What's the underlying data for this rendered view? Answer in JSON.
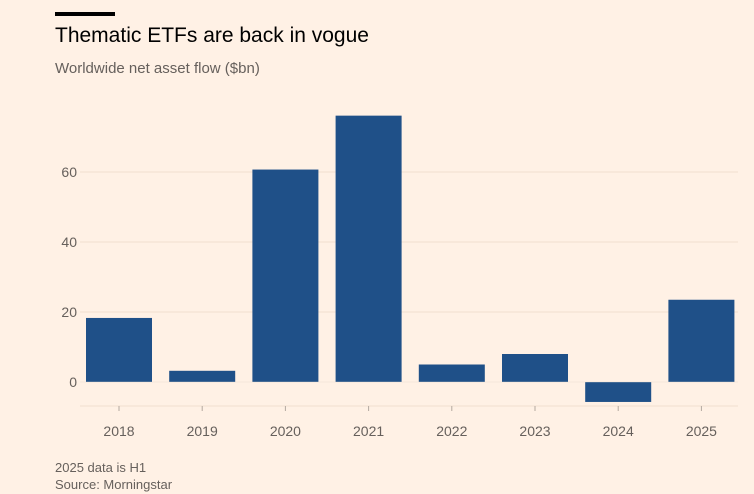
{
  "title": "Thematic ETFs are back in vogue",
  "subtitle": "Worldwide net asset flow ($bn)",
  "note": "2025 data is H1",
  "source": "Source: Morningstar",
  "colors": {
    "background": "#FFF1E5",
    "bar": "#1F5088",
    "grid": "#F2DFCE",
    "text": "#66605C"
  },
  "chart_data": {
    "type": "bar",
    "title": "Thematic ETFs are back in vogue",
    "subtitle": "Worldwide net asset flow ($bn)",
    "xlabel": "",
    "ylabel": "",
    "categories": [
      "2018",
      "2019",
      "2020",
      "2021",
      "2022",
      "2023",
      "2024",
      "2025"
    ],
    "values": [
      18.3,
      3.2,
      60.7,
      76.1,
      5.0,
      8.0,
      -5.7,
      23.5
    ],
    "yticks": [
      0,
      20,
      40,
      60
    ],
    "ylim": [
      -7,
      80
    ],
    "grid": true,
    "legend": "none"
  }
}
